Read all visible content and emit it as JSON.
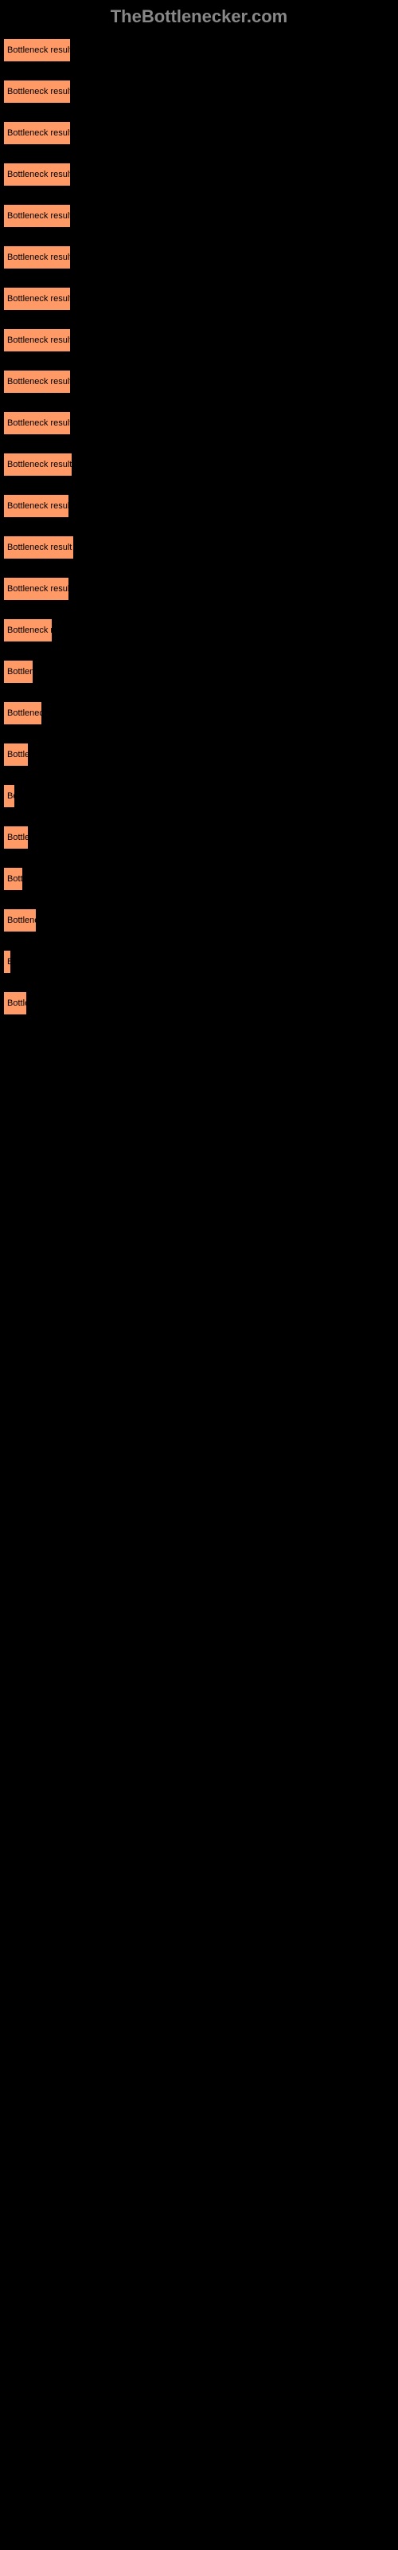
{
  "header": {
    "title": "TheBottlenecker.com"
  },
  "chart": {
    "type": "bar",
    "bar_color": "#ff9966",
    "background_color": "#000000",
    "text_color": "#000000",
    "label_fontsize": 11,
    "title_color": "#888888",
    "title_fontsize": 22,
    "bars": [
      {
        "label": "Bottleneck result",
        "width": 85
      },
      {
        "label": "Bottleneck result",
        "width": 85
      },
      {
        "label": "Bottleneck result",
        "width": 85
      },
      {
        "label": "Bottleneck result",
        "width": 85
      },
      {
        "label": "Bottleneck result",
        "width": 85
      },
      {
        "label": "Bottleneck result",
        "width": 85
      },
      {
        "label": "Bottleneck result",
        "width": 85
      },
      {
        "label": "Bottleneck result",
        "width": 85
      },
      {
        "label": "Bottleneck result",
        "width": 85
      },
      {
        "label": "Bottleneck result",
        "width": 85
      },
      {
        "label": "Bottleneck result",
        "width": 87
      },
      {
        "label": "Bottleneck result",
        "width": 83
      },
      {
        "label": "Bottleneck result",
        "width": 89
      },
      {
        "label": "Bottleneck result",
        "width": 83
      },
      {
        "label": "Bottleneck r",
        "width": 62
      },
      {
        "label": "Bottlen",
        "width": 38
      },
      {
        "label": "Bottleneck",
        "width": 49
      },
      {
        "label": "Bottle",
        "width": 32
      },
      {
        "label": "Bo",
        "width": 15
      },
      {
        "label": "Bottle",
        "width": 32
      },
      {
        "label": "Bott",
        "width": 25
      },
      {
        "label": "Bottlene",
        "width": 42
      },
      {
        "label": "B",
        "width": 10
      },
      {
        "label": "Bottle",
        "width": 30
      }
    ]
  }
}
